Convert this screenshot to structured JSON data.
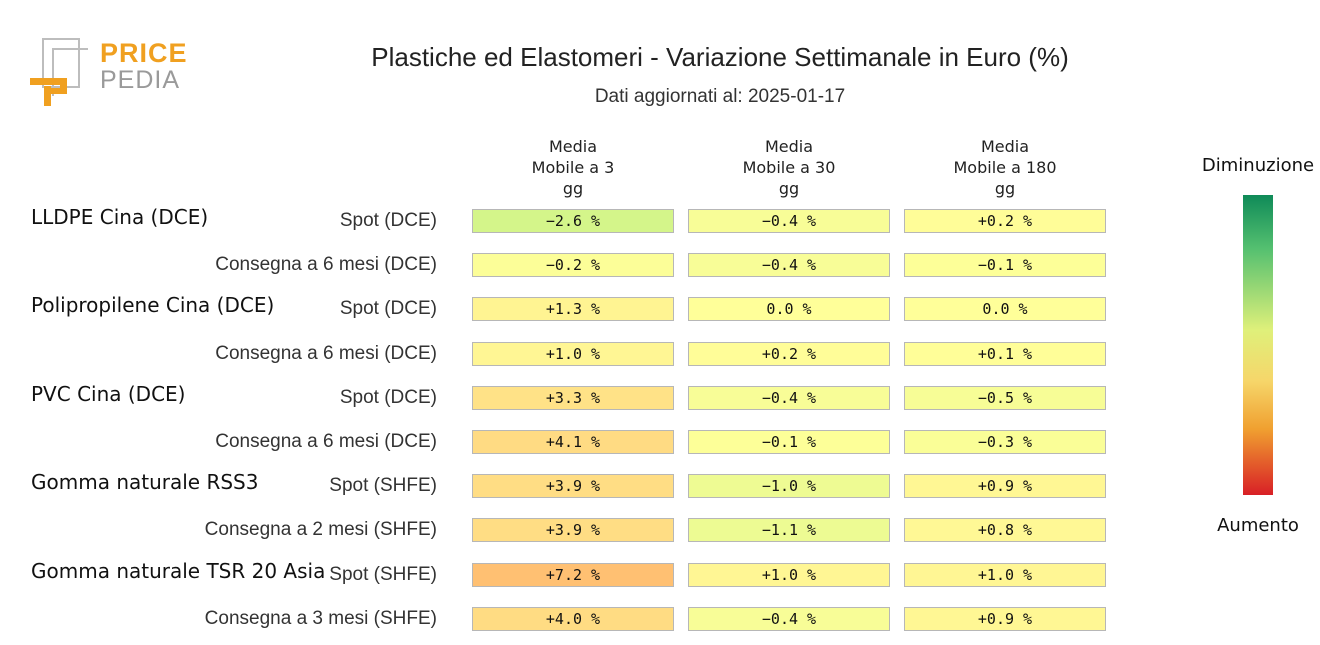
{
  "logo": {
    "line1": "PRICE",
    "line2": "PEDIA"
  },
  "title": "Plastiche ed Elastomeri - Variazione Settimanale in Euro (%)",
  "subtitle": "Dati aggiornati al: 2025-01-17",
  "legend": {
    "top": "Diminuzione",
    "bottom": "Aumento"
  },
  "chart_data": {
    "type": "heatmap",
    "title": "Plastiche ed Elastomeri - Variazione Settimanale in Euro (%)",
    "columns": [
      {
        "line1": "Media",
        "line2": "Mobile a 3",
        "line3": "gg"
      },
      {
        "line1": "Media",
        "line2": "Mobile a 30",
        "line3": "gg"
      },
      {
        "line1": "Media",
        "line2": "Mobile a 180",
        "line3": "gg"
      }
    ],
    "groups": [
      {
        "name": "LLDPE Cina (DCE)",
        "rows": [
          {
            "label": "Spot (DCE)",
            "values": [
              -2.6,
              -0.4,
              0.2
            ],
            "texts": [
              "−2.6 %",
              "−0.4 %",
              "+0.2 %"
            ]
          },
          {
            "label": "Consegna a 6 mesi (DCE)",
            "values": [
              -0.2,
              -0.4,
              -0.1
            ],
            "texts": [
              "−0.2 %",
              "−0.4 %",
              "−0.1 %"
            ]
          }
        ]
      },
      {
        "name": "Polipropilene Cina (DCE)",
        "rows": [
          {
            "label": "Spot (DCE)",
            "values": [
              1.3,
              0.0,
              0.0
            ],
            "texts": [
              "+1.3 %",
              "0.0 %",
              "0.0 %"
            ]
          },
          {
            "label": "Consegna a 6 mesi (DCE)",
            "values": [
              1.0,
              0.2,
              0.1
            ],
            "texts": [
              "+1.0 %",
              "+0.2 %",
              "+0.1 %"
            ]
          }
        ]
      },
      {
        "name": "PVC Cina (DCE)",
        "rows": [
          {
            "label": "Spot (DCE)",
            "values": [
              3.3,
              -0.4,
              -0.5
            ],
            "texts": [
              "+3.3 %",
              "−0.4 %",
              "−0.5 %"
            ]
          },
          {
            "label": "Consegna a 6 mesi (DCE)",
            "values": [
              4.1,
              -0.1,
              -0.3
            ],
            "texts": [
              "+4.1 %",
              "−0.1 %",
              "−0.3 %"
            ]
          }
        ]
      },
      {
        "name": "Gomma naturale RSS3",
        "rows": [
          {
            "label": "Spot (SHFE)",
            "values": [
              3.9,
              -1.0,
              0.9
            ],
            "texts": [
              "+3.9 %",
              "−1.0 %",
              "+0.9 %"
            ]
          },
          {
            "label": "Consegna a 2 mesi (SHFE)",
            "values": [
              3.9,
              -1.1,
              0.8
            ],
            "texts": [
              "+3.9 %",
              "−1.1 %",
              "+0.8 %"
            ]
          }
        ]
      },
      {
        "name": "Gomma naturale TSR 20 Asia",
        "rows": [
          {
            "label": "Spot (SHFE)",
            "values": [
              7.2,
              1.0,
              1.0
            ],
            "texts": [
              "+7.2 %",
              "+1.0 %",
              "+1.0 %"
            ]
          },
          {
            "label": "Consegna a 3 mesi (SHFE)",
            "values": [
              4.0,
              -0.4,
              0.9
            ],
            "texts": [
              "+4.0 %",
              "−0.4 %",
              "+0.9 %"
            ]
          }
        ]
      }
    ],
    "colors": {
      "neutral": "#ffff99",
      "decrease": "#d4f58a",
      "increase": "#ffc072"
    }
  }
}
